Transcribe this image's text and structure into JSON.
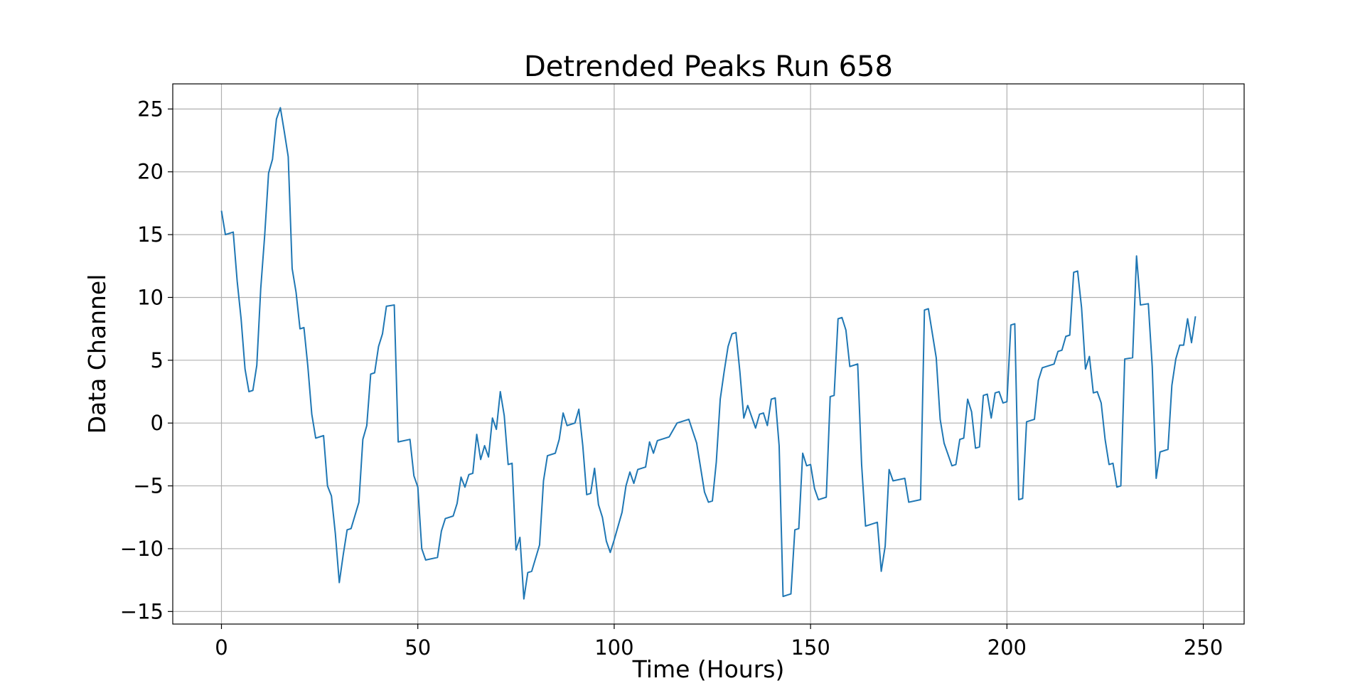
{
  "chart_data": {
    "type": "line",
    "title": "Detrended Peaks Run 658",
    "xlabel": "Time (Hours)",
    "ylabel": "Data Channel",
    "xlim": [
      -12.4,
      260.4
    ],
    "ylim": [
      -16.0,
      27.0
    ],
    "xticks": [
      0,
      50,
      100,
      150,
      200,
      250
    ],
    "xtick_labels": [
      "0",
      "50",
      "100",
      "150",
      "200",
      "250"
    ],
    "yticks": [
      -15,
      -10,
      -5,
      0,
      5,
      10,
      15,
      20,
      25
    ],
    "ytick_labels": [
      "−15",
      "−10",
      "−5",
      "0",
      "5",
      "10",
      "15",
      "20",
      "25"
    ],
    "grid": true,
    "line_color": "#1f77b4",
    "series": [
      {
        "x": [
          0,
          1,
          3,
          4,
          5,
          6,
          7,
          8,
          9,
          10,
          11,
          12,
          13,
          14,
          15,
          16,
          17,
          18,
          19,
          20,
          21,
          22,
          23,
          24,
          26,
          27,
          28,
          29,
          30,
          31,
          32,
          33,
          35,
          36,
          37,
          38,
          39,
          40,
          41,
          42,
          44,
          45,
          48,
          49,
          50,
          51,
          52,
          55,
          56,
          57,
          58,
          59,
          60,
          61,
          62,
          63,
          64,
          65,
          66,
          67,
          68,
          69,
          70,
          71,
          72,
          73,
          74,
          75,
          76,
          77,
          78,
          79,
          81,
          82,
          83,
          85,
          86,
          87,
          88,
          90,
          91,
          92,
          93,
          94,
          95,
          96,
          97,
          98,
          99,
          100,
          102,
          103,
          104,
          105,
          106,
          108,
          109,
          110,
          111,
          113,
          114,
          116,
          119,
          121,
          123,
          124,
          125,
          126,
          127,
          128,
          129,
          130,
          131,
          132,
          133,
          134,
          135,
          136,
          137,
          138,
          139,
          140,
          141,
          142,
          143,
          144,
          145,
          146,
          147,
          148,
          149,
          150,
          151,
          152,
          154,
          155,
          156,
          157,
          158,
          159,
          160,
          162,
          163,
          164,
          167,
          168,
          169,
          170,
          171,
          174,
          175,
          178,
          179,
          180,
          182,
          183,
          184,
          186,
          187,
          188,
          189,
          190,
          191,
          192,
          193,
          194,
          195,
          196,
          197,
          198,
          199,
          200,
          201,
          202,
          203,
          204,
          205,
          207,
          208,
          209,
          212,
          213,
          214,
          215,
          216,
          217,
          218,
          219,
          220,
          221,
          222,
          223,
          224,
          225,
          226,
          227,
          228,
          229,
          230,
          232,
          233,
          234,
          236,
          237,
          238,
          239,
          241,
          242,
          243,
          244,
          245,
          246,
          247,
          248
        ],
        "y": [
          16.9,
          15.0,
          15.2,
          11.3,
          8.3,
          4.3,
          2.5,
          2.6,
          4.6,
          10.7,
          14.9,
          19.9,
          21.0,
          24.2,
          25.1,
          23.2,
          21.2,
          12.3,
          10.4,
          7.5,
          7.6,
          4.5,
          0.7,
          -1.2,
          -1.0,
          -5.0,
          -5.8,
          -8.8,
          -12.7,
          -10.5,
          -8.5,
          -8.4,
          -6.3,
          -1.3,
          -0.2,
          3.9,
          4.0,
          6.1,
          7.1,
          9.3,
          9.4,
          -1.5,
          -1.3,
          -4.2,
          -5.1,
          -10.0,
          -10.9,
          -10.7,
          -8.6,
          -7.6,
          -7.5,
          -7.4,
          -6.4,
          -4.3,
          -5.1,
          -4.1,
          -4.0,
          -0.9,
          -2.9,
          -1.8,
          -2.7,
          0.4,
          -0.5,
          2.5,
          0.6,
          -3.3,
          -3.2,
          -10.1,
          -9.1,
          -14.0,
          -11.9,
          -11.8,
          -9.7,
          -4.6,
          -2.6,
          -2.4,
          -1.3,
          0.8,
          -0.2,
          0.0,
          1.1,
          -1.8,
          -5.7,
          -5.6,
          -3.6,
          -6.5,
          -7.5,
          -9.4,
          -10.3,
          -9.3,
          -7.1,
          -5.0,
          -3.9,
          -4.8,
          -3.7,
          -3.5,
          -1.5,
          -2.4,
          -1.4,
          -1.2,
          -1.1,
          0.0,
          0.3,
          -1.6,
          -5.5,
          -6.3,
          -6.2,
          -3.1,
          1.9,
          4.1,
          6.1,
          7.1,
          7.2,
          4.1,
          0.4,
          1.4,
          0.5,
          -0.4,
          0.7,
          0.8,
          -0.2,
          1.9,
          2.0,
          -1.8,
          -13.8,
          -13.7,
          -13.6,
          -8.5,
          -8.4,
          -2.4,
          -3.4,
          -3.3,
          -5.2,
          -6.1,
          -5.9,
          2.1,
          2.2,
          8.3,
          8.4,
          7.4,
          4.5,
          4.7,
          -3.3,
          -8.2,
          -7.9,
          -11.8,
          -9.8,
          -3.7,
          -4.6,
          -4.4,
          -6.3,
          -6.1,
          9.0,
          9.1,
          5.2,
          0.3,
          -1.6,
          -3.4,
          -3.3,
          -1.3,
          -1.2,
          1.9,
          0.9,
          -2.0,
          -1.9,
          2.2,
          2.3,
          0.4,
          2.4,
          2.5,
          1.6,
          1.7,
          7.8,
          7.9,
          -6.1,
          -6.0,
          0.1,
          0.3,
          3.4,
          4.4,
          4.7,
          5.7,
          5.8,
          6.9,
          7.0,
          12.0,
          12.1,
          9.2,
          4.3,
          5.3,
          2.4,
          2.5,
          1.6,
          -1.3,
          -3.3,
          -3.2,
          -5.1,
          -5.0,
          5.1,
          5.2,
          13.3,
          9.4,
          9.5,
          4.5,
          -4.4,
          -2.3,
          -2.1,
          3.0,
          5.1,
          6.2,
          6.2,
          8.3,
          6.4,
          8.5
        ]
      }
    ]
  }
}
